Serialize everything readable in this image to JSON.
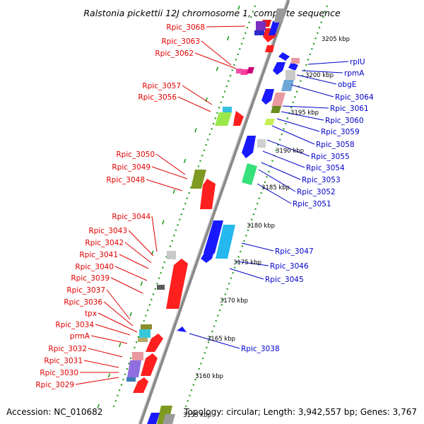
{
  "title": "Ralstonia pickettii 12J chromosome 1, complete sequence",
  "footer": {
    "accession": "Accession: NC_010682",
    "topology": "Topology: circular; Length: 3,942,557 bp; Genes: 3,767"
  },
  "scale_labels": [
    "3205 kbp",
    "3200 kbp",
    "3195 kbp",
    "3190 kbp",
    "3185 kbp",
    "3180 kbp",
    "3175 kbp",
    "3170 kbp",
    "3165 kbp",
    "3160 kbp",
    "3155 kbp"
  ],
  "left_labels": [
    "Rpic_3068",
    "Rpic_3063",
    "Rpic_3062",
    "Rpic_3057",
    "Rpic_3056",
    "Rpic_3050",
    "Rpic_3049",
    "Rpic_3048",
    "Rpic_3044",
    "Rpic_3043",
    "Rpic_3042",
    "Rpic_3041",
    "Rpic_3040",
    "Rpic_3039",
    "Rpic_3037",
    "Rpic_3036",
    "tpx",
    "Rpic_3034",
    "prmA",
    "Rpic_3032",
    "Rpic_3031",
    "Rpic_3030",
    "Rpic_3029"
  ],
  "right_labels": [
    "rplU",
    "rpmA",
    "obgE",
    "Rpic_3064",
    "Rpic_3061",
    "Rpic_3060",
    "Rpic_3059",
    "Rpic_3058",
    "Rpic_3055",
    "Rpic_3054",
    "Rpic_3053",
    "Rpic_3052",
    "Rpic_3051",
    "Rpic_3047",
    "Rpic_3046",
    "Rpic_3045",
    "Rpic_3038"
  ],
  "colors": {
    "forward_strand": "#ff0000",
    "reverse_strand": "#0000ff",
    "backbone": "#808080",
    "scale_dots": "#008000",
    "left_label": "#e00000",
    "right_label": "#0000c8"
  }
}
